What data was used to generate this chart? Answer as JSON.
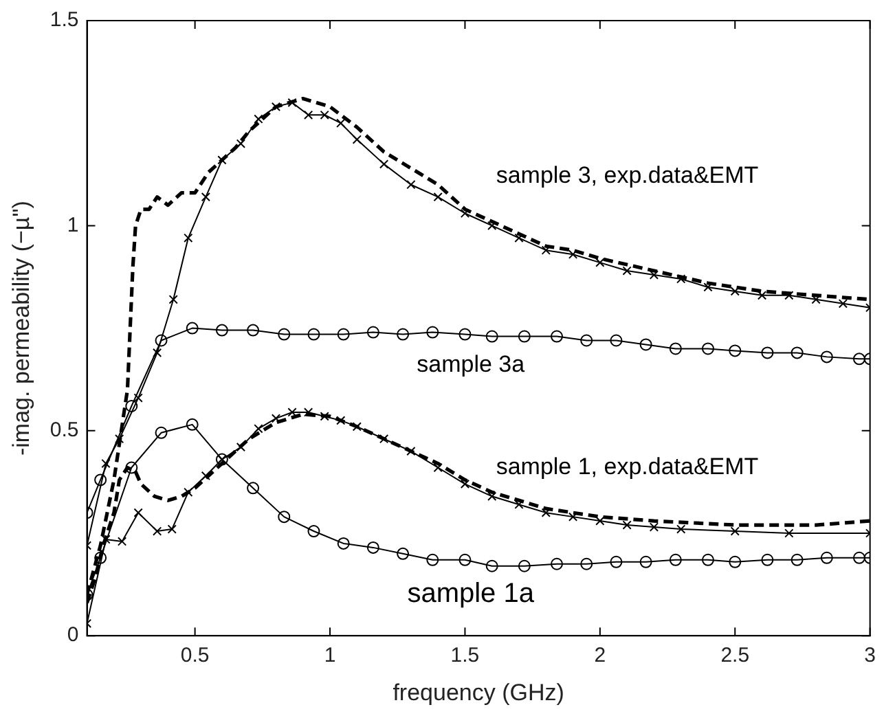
{
  "chart_data": {
    "type": "line",
    "xlabel": "frequency (GHz)",
    "ylabel": "-imag. permeability (−µ\")",
    "xlim": [
      0.1,
      3
    ],
    "xticks": [
      0.5,
      1,
      1.5,
      2,
      2.5,
      3
    ],
    "ylim": [
      0,
      1.5
    ],
    "yticks": [
      0,
      0.5,
      1,
      1.5
    ],
    "grid": false,
    "legend": false,
    "series": [
      {
        "color": "#000000",
        "marker": "none",
        "line_style": "dashed",
        "x": [
          0.1,
          0.15,
          0.2,
          0.25,
          0.27,
          0.28,
          0.3,
          0.33,
          0.36,
          0.4,
          0.45,
          0.5,
          0.55,
          0.6,
          0.65,
          0.7,
          0.8,
          0.9,
          1.0,
          1.1,
          1.2,
          1.3,
          1.4,
          1.5,
          1.6,
          1.7,
          1.8,
          1.9,
          2.0,
          2.2,
          2.4,
          2.6,
          2.8,
          3.0
        ],
        "values": [
          0.1,
          0.22,
          0.38,
          0.6,
          0.9,
          1.0,
          1.04,
          1.04,
          1.07,
          1.05,
          1.08,
          1.08,
          1.13,
          1.16,
          1.19,
          1.23,
          1.29,
          1.31,
          1.29,
          1.24,
          1.18,
          1.14,
          1.1,
          1.04,
          1.01,
          0.98,
          0.95,
          0.94,
          0.92,
          0.89,
          0.86,
          0.84,
          0.83,
          0.82
        ]
      },
      {
        "color": "#000000",
        "marker": "cross",
        "line_style": "solid",
        "x": [
          0.1,
          0.17,
          0.22,
          0.29,
          0.36,
          0.42,
          0.475,
          0.54,
          0.6,
          0.67,
          0.735,
          0.8,
          0.86,
          0.92,
          0.98,
          1.04,
          1.1,
          1.2,
          1.3,
          1.4,
          1.5,
          1.6,
          1.7,
          1.8,
          1.9,
          2.0,
          2.1,
          2.2,
          2.3,
          2.4,
          2.5,
          2.6,
          2.7,
          2.8,
          2.9,
          3.0
        ],
        "values": [
          0.22,
          0.42,
          0.48,
          0.58,
          0.69,
          0.82,
          0.97,
          1.07,
          1.16,
          1.2,
          1.26,
          1.29,
          1.3,
          1.27,
          1.27,
          1.25,
          1.21,
          1.15,
          1.1,
          1.07,
          1.03,
          1.0,
          0.97,
          0.94,
          0.93,
          0.91,
          0.89,
          0.88,
          0.87,
          0.85,
          0.84,
          0.83,
          0.83,
          0.82,
          0.81,
          0.8
        ]
      },
      {
        "color": "#000000",
        "marker": "circle",
        "line_style": "solid",
        "x": [
          0.1,
          0.15,
          0.265,
          0.375,
          0.49,
          0.6,
          0.715,
          0.83,
          0.94,
          1.05,
          1.16,
          1.27,
          1.38,
          1.5,
          1.6,
          1.72,
          1.84,
          1.95,
          2.06,
          2.17,
          2.28,
          2.4,
          2.5,
          2.62,
          2.73,
          2.84,
          2.96,
          3.0
        ],
        "values": [
          0.3,
          0.38,
          0.56,
          0.72,
          0.75,
          0.745,
          0.745,
          0.735,
          0.735,
          0.735,
          0.74,
          0.735,
          0.74,
          0.735,
          0.73,
          0.73,
          0.73,
          0.72,
          0.72,
          0.71,
          0.7,
          0.7,
          0.695,
          0.69,
          0.69,
          0.68,
          0.675,
          0.675
        ]
      },
      {
        "color": "#000000",
        "marker": "none",
        "line_style": "dashed",
        "x": [
          0.1,
          0.13,
          0.16,
          0.2,
          0.22,
          0.25,
          0.28,
          0.3,
          0.35,
          0.4,
          0.45,
          0.5,
          0.6,
          0.7,
          0.8,
          0.9,
          1.0,
          1.1,
          1.2,
          1.3,
          1.4,
          1.5,
          1.6,
          1.8,
          2.0,
          2.2,
          2.5,
          2.8,
          3.0
        ],
        "values": [
          0.08,
          0.14,
          0.22,
          0.3,
          0.38,
          0.41,
          0.4,
          0.37,
          0.34,
          0.33,
          0.34,
          0.36,
          0.42,
          0.48,
          0.52,
          0.54,
          0.535,
          0.51,
          0.48,
          0.45,
          0.42,
          0.38,
          0.35,
          0.31,
          0.29,
          0.28,
          0.27,
          0.27,
          0.28
        ]
      },
      {
        "color": "#000000",
        "marker": "cross",
        "line_style": "solid",
        "x": [
          0.1,
          0.17,
          0.23,
          0.29,
          0.36,
          0.415,
          0.475,
          0.54,
          0.6,
          0.67,
          0.735,
          0.8,
          0.86,
          0.92,
          0.98,
          1.04,
          1.1,
          1.2,
          1.3,
          1.4,
          1.5,
          1.6,
          1.7,
          1.8,
          1.9,
          2.0,
          2.1,
          2.2,
          2.3,
          2.5,
          2.7,
          3.0
        ],
        "values": [
          0.03,
          0.235,
          0.23,
          0.3,
          0.255,
          0.26,
          0.35,
          0.39,
          0.43,
          0.46,
          0.505,
          0.53,
          0.545,
          0.545,
          0.535,
          0.525,
          0.51,
          0.48,
          0.45,
          0.41,
          0.37,
          0.34,
          0.32,
          0.3,
          0.29,
          0.28,
          0.27,
          0.265,
          0.26,
          0.255,
          0.25,
          0.25
        ]
      },
      {
        "color": "#000000",
        "marker": "circle",
        "line_style": "solid",
        "x": [
          0.1,
          0.15,
          0.265,
          0.375,
          0.49,
          0.6,
          0.715,
          0.83,
          0.94,
          1.05,
          1.16,
          1.27,
          1.38,
          1.5,
          1.6,
          1.72,
          1.84,
          1.95,
          2.06,
          2.17,
          2.28,
          2.4,
          2.5,
          2.62,
          2.73,
          2.84,
          2.96,
          3.0
        ],
        "values": [
          0.1,
          0.19,
          0.41,
          0.495,
          0.515,
          0.43,
          0.36,
          0.29,
          0.255,
          0.225,
          0.215,
          0.2,
          0.185,
          0.185,
          0.17,
          0.17,
          0.175,
          0.175,
          0.18,
          0.18,
          0.185,
          0.185,
          0.18,
          0.185,
          0.185,
          0.19,
          0.19,
          0.19
        ]
      }
    ],
    "annotations": [
      "sample 3, exp.data&EMT",
      "sample 3a",
      "sample 1, exp.data&EMT",
      "sample 1a"
    ]
  }
}
